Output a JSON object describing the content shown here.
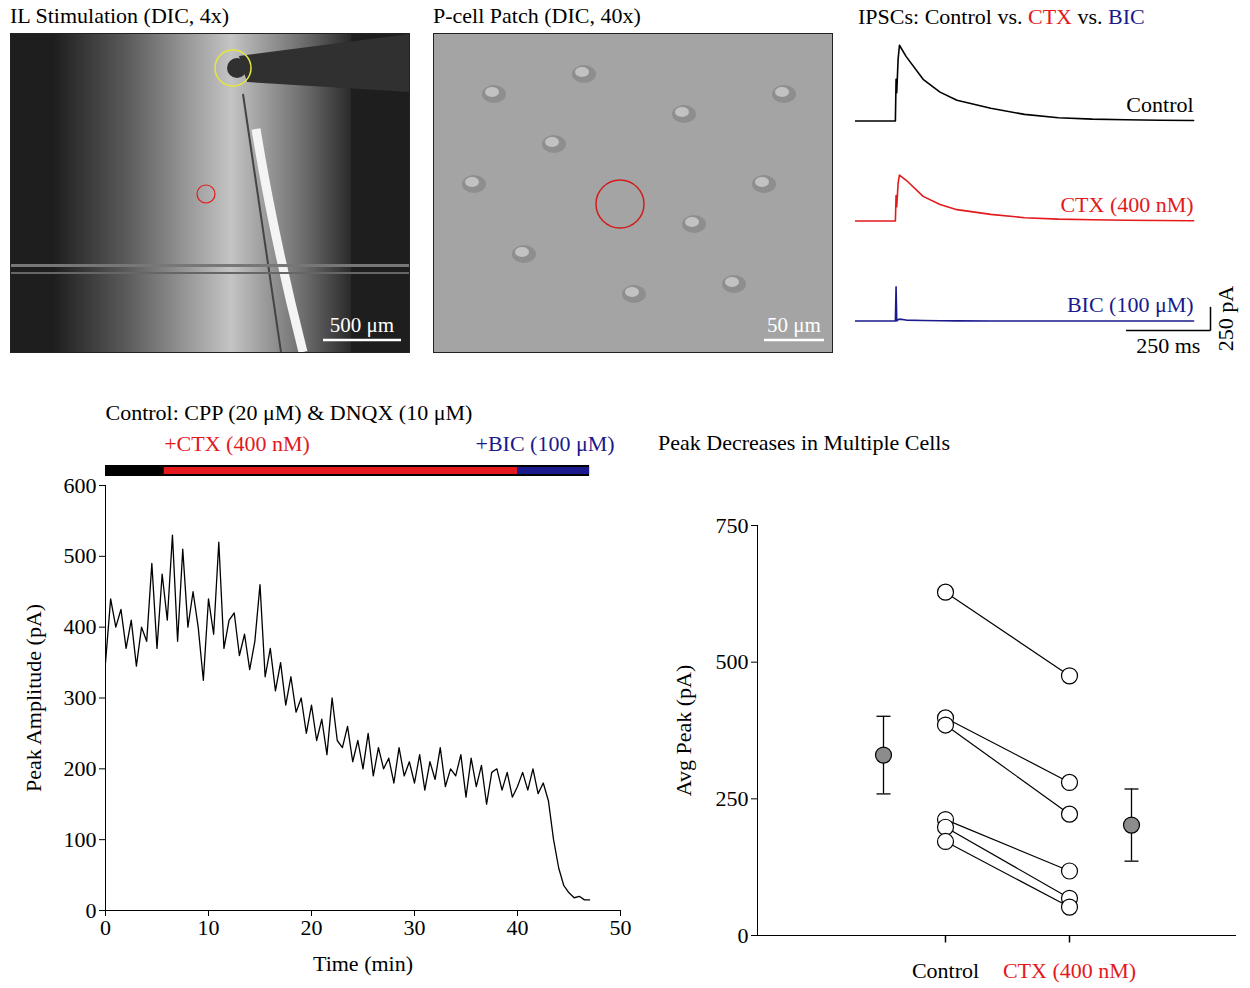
{
  "chart_data": [
    {
      "type": "image",
      "title": "IL Stimulation (DIC, 4x)",
      "scale_bar": "500 μm"
    },
    {
      "type": "image",
      "title": "P-cell Patch (DIC, 40x)",
      "scale_bar": "50 μm"
    },
    {
      "type": "line",
      "title": "IPSCs: Control vs. CTX vs. BIC",
      "x": [
        0,
        100,
        118,
        120,
        122,
        126,
        130,
        150,
        200,
        250,
        300,
        400,
        500,
        600,
        700,
        800,
        900,
        1000
      ],
      "series": [
        {
          "name": "Control",
          "color": "#000000",
          "values": [
            0,
            0,
            0,
            440,
            300,
            650,
            800,
            680,
            440,
            305,
            220,
            135,
            70,
            35,
            20,
            14,
            8,
            5
          ]
        },
        {
          "name": "CTX (400 nM)",
          "color": "#e3191c",
          "values": [
            0,
            0,
            0,
            270,
            150,
            400,
            485,
            430,
            260,
            175,
            120,
            70,
            35,
            20,
            14,
            8,
            5,
            3
          ]
        },
        {
          "name": "BIC (100 μM)",
          "color": "#1a1a8c",
          "values": [
            0,
            0,
            0,
            360,
            0,
            15,
            20,
            10,
            5,
            3,
            2,
            0,
            0,
            0,
            0,
            0,
            0,
            0
          ]
        }
      ],
      "xlim": [
        0,
        1050
      ],
      "ylim": [
        -100,
        850
      ],
      "tick_labels": false,
      "scale_bar": {
        "x": 250,
        "x_label": "250 ms",
        "y": 250,
        "y_label": "250 pA"
      }
    },
    {
      "type": "line",
      "conditions": [
        {
          "label": "Control: CPP (20 μM) & DNQX (10 μM)",
          "start": 0,
          "end": 5.7,
          "color": "#000000"
        },
        {
          "label": "+CTX (400 nM)",
          "start": 5.7,
          "end": 40,
          "color": "#e3191c"
        },
        {
          "label": "+BIC (100 μM)",
          "start": 40,
          "end": 47,
          "color": "#1a1a8c"
        }
      ],
      "x_label": "Time (min)",
      "y_label": "Peak Amplitude (pA)",
      "color": "#000000",
      "x": [
        0,
        0.5,
        1,
        1.5,
        2,
        2.5,
        3,
        3.5,
        4,
        4.5,
        5,
        5.5,
        6,
        6.5,
        7,
        7.5,
        8,
        8.5,
        9,
        9.5,
        10,
        10.5,
        11,
        11.5,
        12,
        12.5,
        13,
        13.5,
        14,
        14.5,
        15,
        15.5,
        16,
        16.5,
        17,
        17.5,
        18,
        18.5,
        19,
        19.5,
        20,
        20.5,
        21,
        21.5,
        22,
        22.5,
        23,
        23.5,
        24,
        24.5,
        25,
        25.5,
        26,
        26.5,
        27,
        27.5,
        28,
        28.5,
        29,
        29.5,
        30,
        30.5,
        31,
        31.5,
        32,
        32.5,
        33,
        33.5,
        34,
        34.5,
        35,
        35.5,
        36,
        36.5,
        37,
        37.5,
        38,
        38.5,
        39,
        39.5,
        40,
        40.5,
        41,
        41.5,
        42,
        42.5,
        43,
        43.5,
        44,
        44.5,
        45,
        45.5,
        46,
        46.5,
        47
      ],
      "values": [
        350,
        440,
        400,
        425,
        370,
        410,
        345,
        400,
        380,
        490,
        370,
        475,
        410,
        530,
        380,
        510,
        400,
        450,
        400,
        325,
        440,
        390,
        520,
        370,
        410,
        420,
        360,
        390,
        340,
        380,
        460,
        330,
        370,
        310,
        350,
        290,
        330,
        280,
        300,
        250,
        290,
        240,
        270,
        220,
        300,
        240,
        230,
        260,
        210,
        240,
        200,
        250,
        190,
        230,
        200,
        215,
        180,
        230,
        190,
        210,
        180,
        220,
        170,
        210,
        185,
        230,
        175,
        200,
        190,
        220,
        160,
        215,
        175,
        205,
        150,
        195,
        200,
        170,
        195,
        160,
        175,
        195,
        170,
        200,
        165,
        180,
        155,
        100,
        60,
        35,
        25,
        18,
        20,
        15,
        15
      ],
      "xlim": [
        0,
        50
      ],
      "xticks": [
        0,
        10,
        20,
        30,
        40,
        50
      ],
      "ylim": [
        0,
        600
      ],
      "yticks": [
        0,
        100,
        200,
        300,
        400,
        500,
        600
      ]
    },
    {
      "type": "scatter",
      "title": "Peak Decreases in Multiple Cells",
      "y_label": "Avg Peak (pA)",
      "categories": [
        "Control",
        "CTX (400 nM)"
      ],
      "colors": [
        "#000000",
        "#e3191c"
      ],
      "pairs": [
        [
          628,
          475
        ],
        [
          398,
          280
        ],
        [
          385,
          222
        ],
        [
          212,
          118
        ],
        [
          198,
          68
        ],
        [
          172,
          52
        ]
      ],
      "means": [
        330,
        202
      ],
      "errors": [
        71,
        66
      ],
      "ylim": [
        0,
        750
      ],
      "yticks": [
        0,
        250,
        500,
        750
      ]
    }
  ]
}
